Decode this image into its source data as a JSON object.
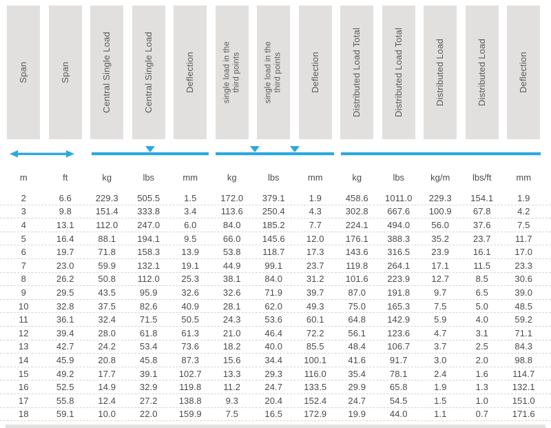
{
  "colors": {
    "accent_blue": "#29a9e1",
    "header_box": "#e2e0de",
    "header_text": "#58595b",
    "data_text": "#4a4a4c",
    "row_divider": "#d6d4d2",
    "bottom_strip": "#dedcda"
  },
  "icons": {
    "span_extent": "double-headed-arrow",
    "central_load": "beam-line-with-center-triangle",
    "third_point_loads": "beam-line-with-two-triangles",
    "distributed_load": "plain-beam-line"
  },
  "table": {
    "columns": [
      {
        "label": "Span",
        "unit": "m"
      },
      {
        "label": "Span",
        "unit": "ft"
      },
      {
        "label": "Central Single Load",
        "unit": "kg"
      },
      {
        "label": "Central Single Load",
        "unit": "lbs"
      },
      {
        "label": "Deflection",
        "unit": "mm"
      },
      {
        "label": "single load in the\nthird points",
        "unit": "kg"
      },
      {
        "label": "single load in the\nthird points",
        "unit": "lbs"
      },
      {
        "label": "Deflection",
        "unit": "mm"
      },
      {
        "label": "Distributed Load Total",
        "unit": "kg"
      },
      {
        "label": "Distributed Load Total",
        "unit": "lbs"
      },
      {
        "label": "Distributed Load",
        "unit": "kg/m"
      },
      {
        "label": "Distributed Load",
        "unit": "lbs/ft"
      },
      {
        "label": "Deflection",
        "unit": "mm"
      }
    ],
    "units": [
      "m",
      "ft",
      "kg",
      "lbs",
      "mm",
      "kg",
      "lbs",
      "mm",
      "kg",
      "lbs",
      "kg/m",
      "lbs/ft",
      "mm"
    ],
    "rows": [
      [
        "2",
        "6.6",
        "229.3",
        "505.5",
        "1.5",
        "172.0",
        "379.1",
        "1.9",
        "458.6",
        "1011.0",
        "229.3",
        "154.1",
        "1.9"
      ],
      [
        "3",
        "9.8",
        "151.4",
        "333.8",
        "3.4",
        "113.6",
        "250.4",
        "4.3",
        "302.8",
        "667.6",
        "100.9",
        "67.8",
        "4.2"
      ],
      [
        "4",
        "13.1",
        "112.0",
        "247.0",
        "6.0",
        "84.0",
        "185.2",
        "7.7",
        "224.1",
        "494.0",
        "56.0",
        "37.6",
        "7.5"
      ],
      [
        "5",
        "16.4",
        "88.1",
        "194.1",
        "9.5",
        "66.0",
        "145.6",
        "12.0",
        "176.1",
        "388.3",
        "35.2",
        "23.7",
        "11.7"
      ],
      [
        "6",
        "19.7",
        "71.8",
        "158.3",
        "13.9",
        "53.8",
        "118.7",
        "17.3",
        "143.6",
        "316.5",
        "23.9",
        "16.1",
        "17.0"
      ],
      [
        "7",
        "23.0",
        "59.9",
        "132.1",
        "19.1",
        "44.9",
        "99.1",
        "23.7",
        "119.8",
        "264.1",
        "17.1",
        "11.5",
        "23.3"
      ],
      [
        "8",
        "26.2",
        "50.8",
        "112.0",
        "25.3",
        "38.1",
        "84.0",
        "31.2",
        "101.6",
        "223.9",
        "12.7",
        "8.5",
        "30.6"
      ],
      [
        "9",
        "29.5",
        "43.5",
        "95.9",
        "32.6",
        "32.6",
        "71.9",
        "39.7",
        "87.0",
        "191.8",
        "9.7",
        "6.5",
        "39.0"
      ],
      [
        "10",
        "32.8",
        "37.5",
        "82.6",
        "40.9",
        "28.1",
        "62.0",
        "49.3",
        "75.0",
        "165.3",
        "7.5",
        "5.0",
        "48.5"
      ],
      [
        "11",
        "36.1",
        "32.4",
        "71.5",
        "50.5",
        "24.3",
        "53.6",
        "60.1",
        "64.8",
        "142.9",
        "5.9",
        "4.0",
        "59.2"
      ],
      [
        "12",
        "39.4",
        "28.0",
        "61.8",
        "61.3",
        "21.0",
        "46.4",
        "72.2",
        "56.1",
        "123.6",
        "4.7",
        "3.1",
        "71.1"
      ],
      [
        "13",
        "42.7",
        "24.2",
        "53.4",
        "73.6",
        "18.2",
        "40.0",
        "85.5",
        "48.4",
        "106.7",
        "3.7",
        "2.5",
        "84.3"
      ],
      [
        "14",
        "45.9",
        "20.8",
        "45.8",
        "87.3",
        "15.6",
        "34.4",
        "100.1",
        "41.6",
        "91.7",
        "3.0",
        "2.0",
        "98.8"
      ],
      [
        "15",
        "49.2",
        "17.7",
        "39.1",
        "102.7",
        "13.3",
        "29.3",
        "116.0",
        "35.4",
        "78.1",
        "2.4",
        "1.6",
        "114.7"
      ],
      [
        "16",
        "52.5",
        "14.9",
        "32.9",
        "119.8",
        "11.2",
        "24.7",
        "133.5",
        "29.9",
        "65.8",
        "1.9",
        "1.3",
        "132.1"
      ],
      [
        "17",
        "55.8",
        "12.4",
        "27.2",
        "138.8",
        "9.3",
        "20.4",
        "152.4",
        "24.7",
        "54.5",
        "1.5",
        "1.0",
        "151.0"
      ],
      [
        "18",
        "59.1",
        "10.0",
        "22.0",
        "159.9",
        "7.5",
        "16.5",
        "172.9",
        "19.9",
        "44.0",
        "1.1",
        "0.7",
        "171.6"
      ]
    ]
  }
}
